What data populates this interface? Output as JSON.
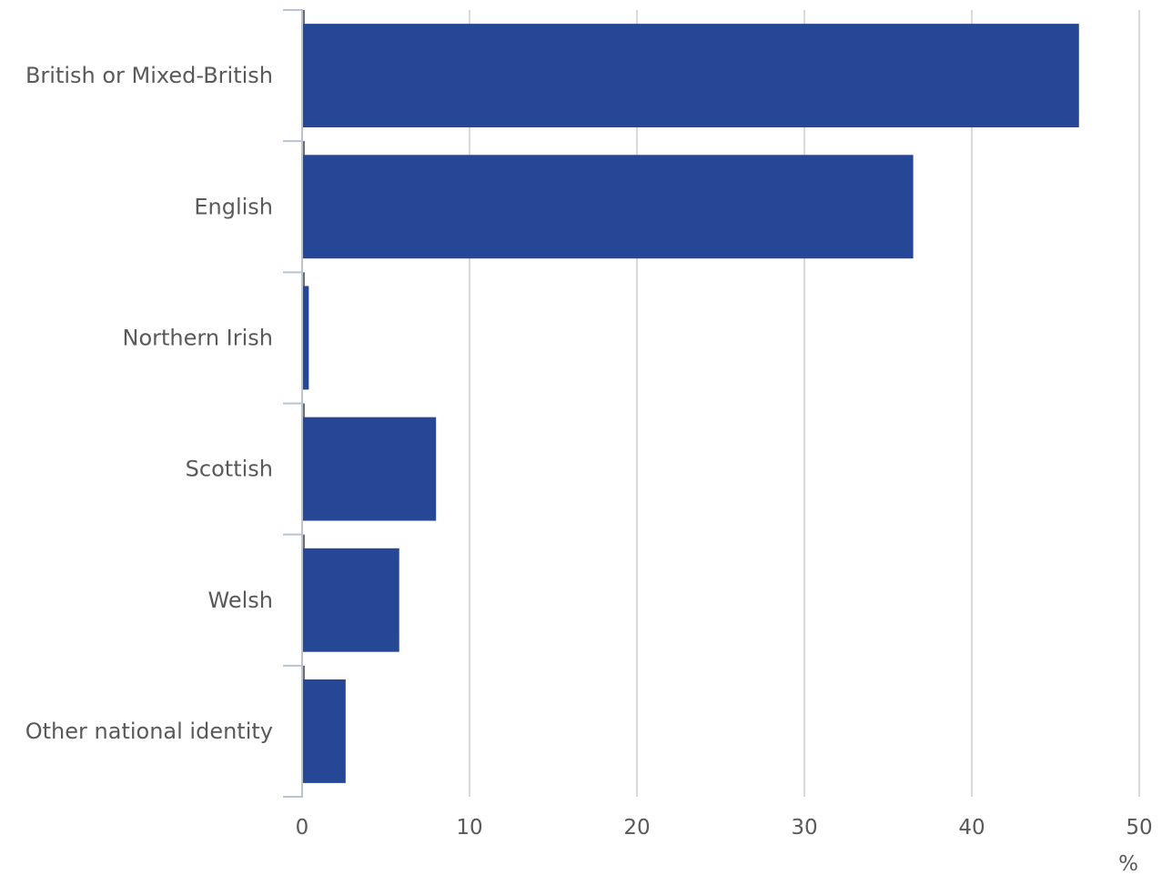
{
  "chart_data": {
    "type": "bar",
    "orientation": "horizontal",
    "categories": [
      "British or Mixed-British",
      "English",
      "Northern Irish",
      "Scottish",
      "Welsh",
      "Other national identity"
    ],
    "values": [
      46.4,
      36.5,
      0.4,
      8.0,
      5.8,
      2.6
    ],
    "xlim": [
      0,
      50
    ],
    "xticks": [
      "0",
      "10",
      "20",
      "30",
      "40",
      "50"
    ],
    "xunit": "%",
    "grid": "vertical",
    "bar_color": "#264796",
    "legend": "none"
  }
}
